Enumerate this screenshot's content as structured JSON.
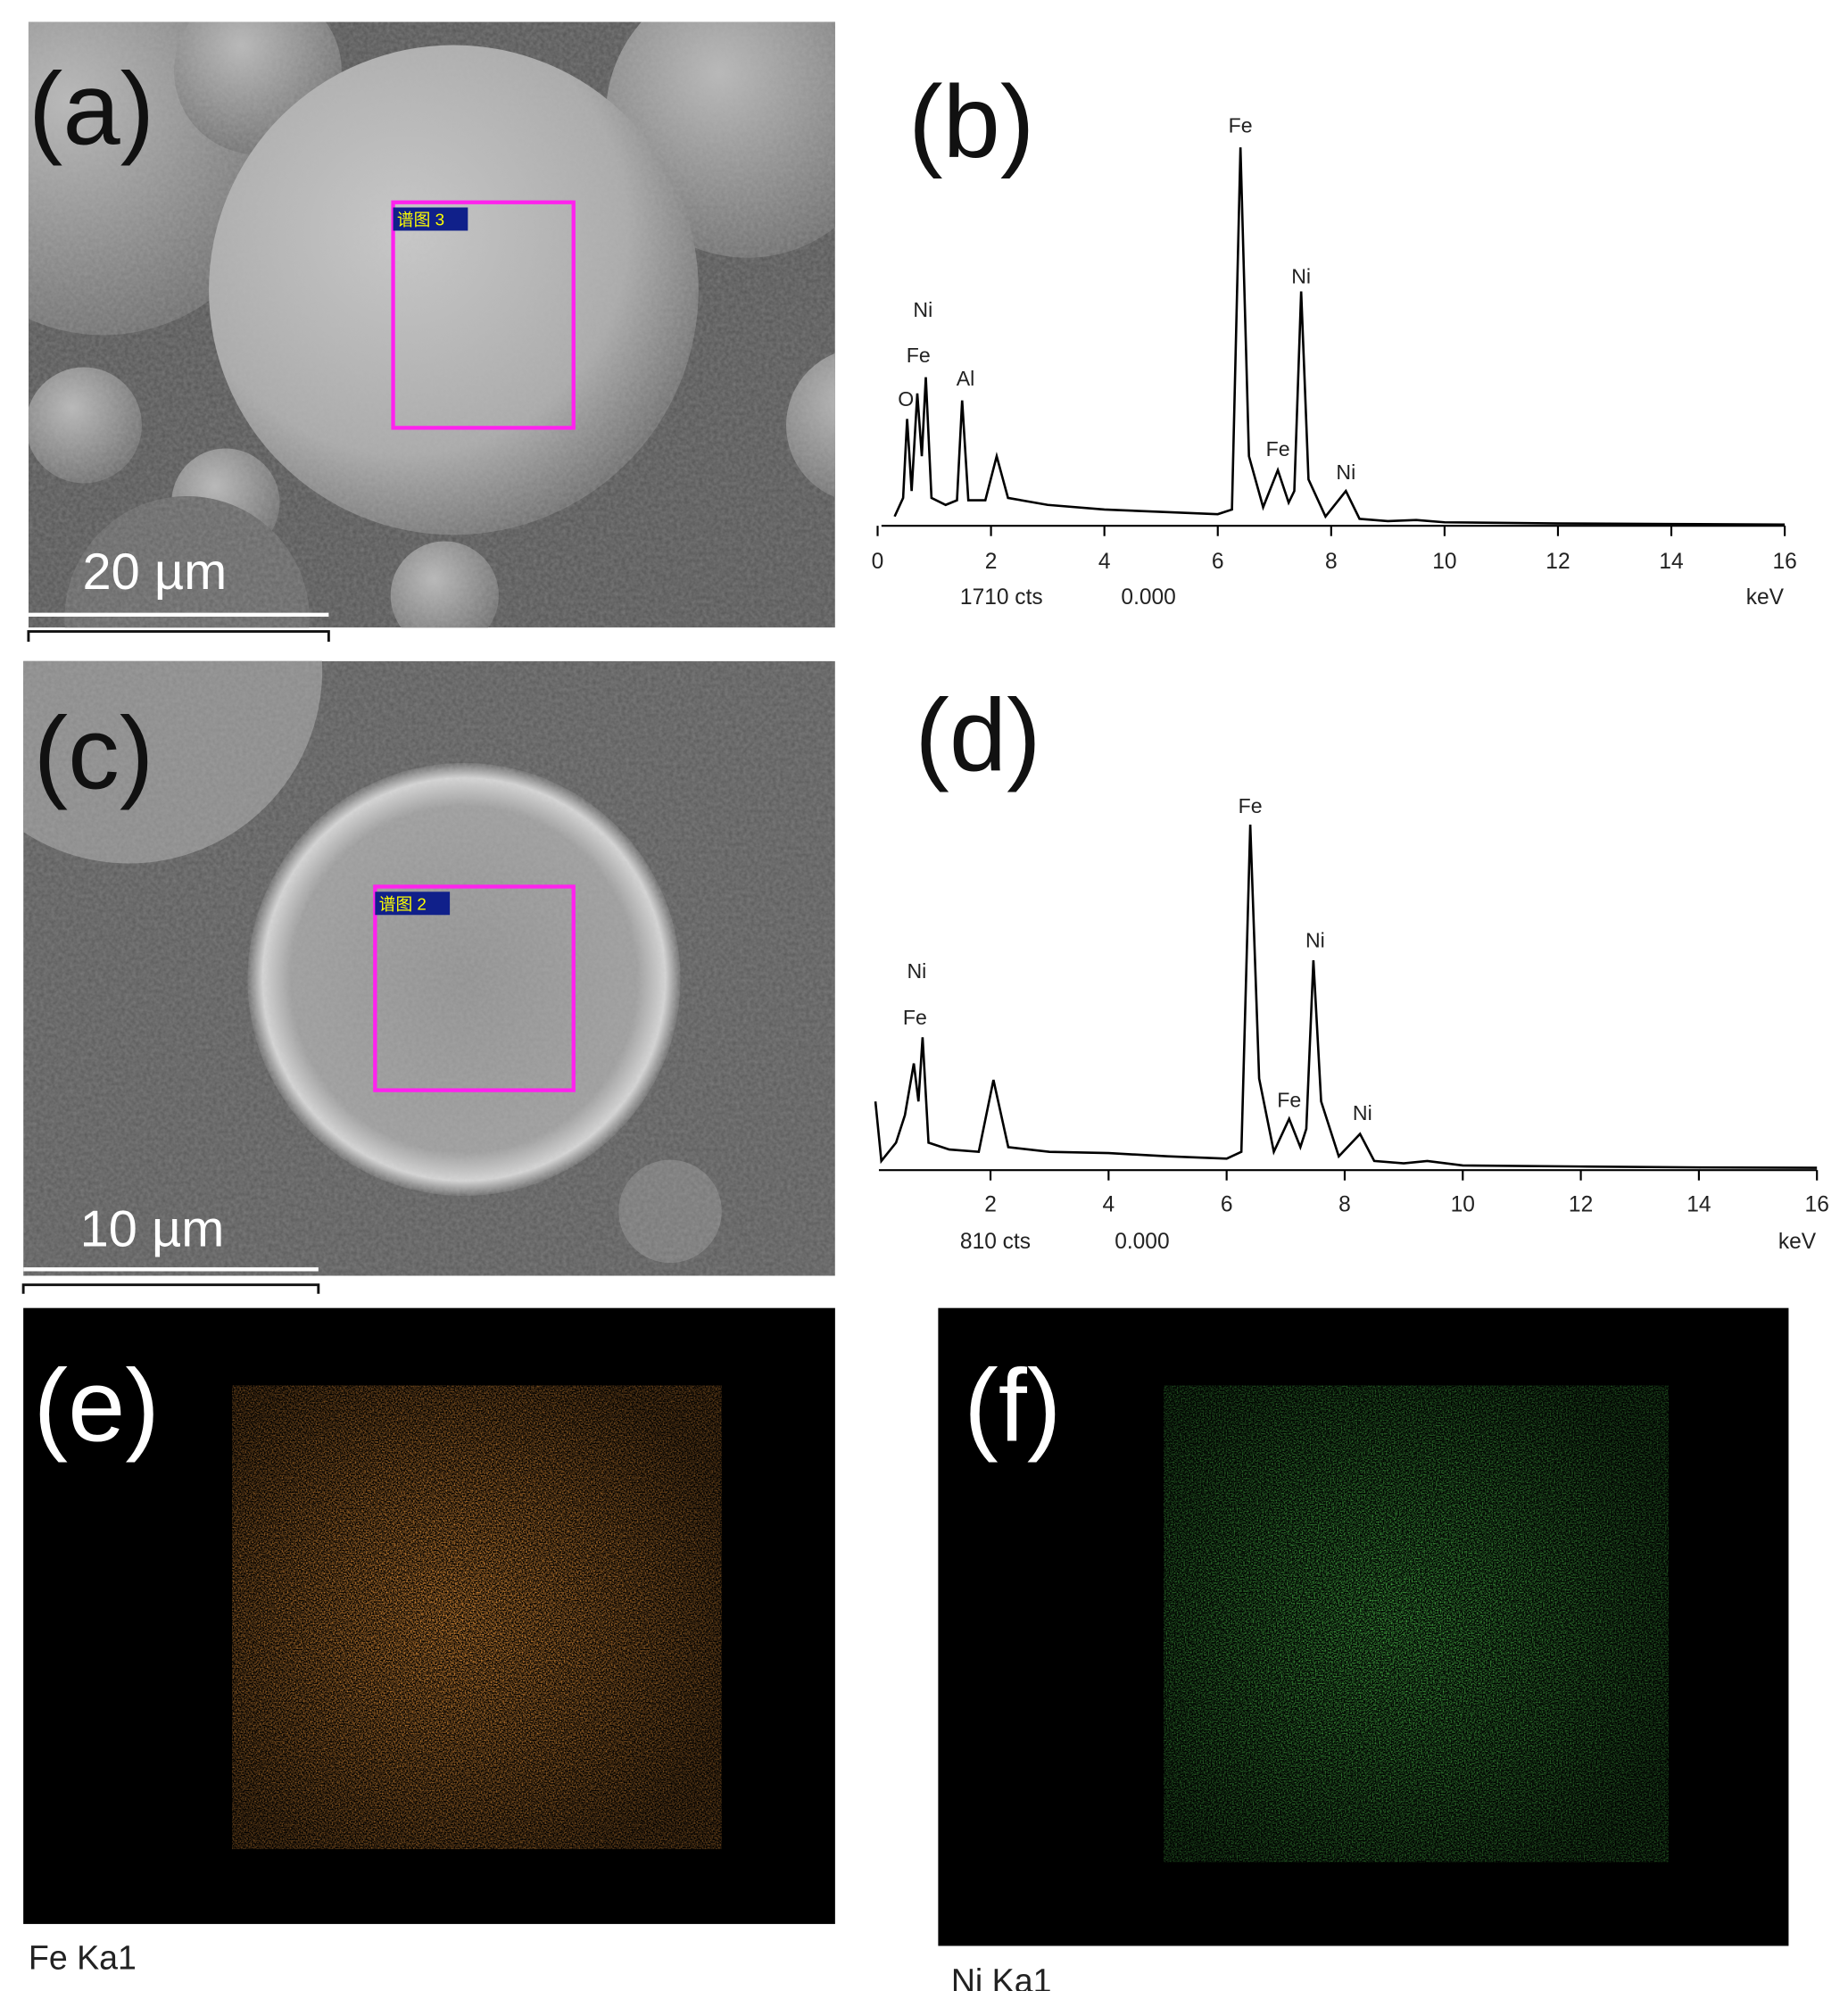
{
  "images": [
    {
      "label": "(a)",
      "scale_bar": "20 µm",
      "region_tag": "谱图 3"
    },
    {
      "label": "(c)",
      "scale_bar": "10 µm",
      "region_tag": "谱图 2"
    },
    {
      "label": "(e)",
      "caption": "Fe Ka1"
    },
    {
      "label": "(f)",
      "caption": "Ni Ka1"
    }
  ],
  "chart_data": [
    {
      "type": "line",
      "title": "(b)",
      "xlabel": "keV",
      "scale_label": "1710 cts",
      "offset_label": "0.000",
      "xlim": [
        0,
        16
      ],
      "xticks": [
        0,
        2,
        4,
        6,
        8,
        10,
        12,
        14,
        16
      ],
      "ylim": [
        0,
        1710
      ],
      "color": "#000000",
      "x": [
        0.3,
        0.45,
        0.52,
        0.6,
        0.7,
        0.78,
        0.85,
        0.95,
        1.2,
        1.4,
        1.49,
        1.6,
        1.9,
        2.1,
        2.3,
        3,
        4,
        5,
        6,
        6.25,
        6.4,
        6.55,
        6.8,
        7.06,
        7.25,
        7.35,
        7.47,
        7.6,
        7.9,
        8.26,
        8.5,
        9,
        9.5,
        10,
        12,
        14,
        16
      ],
      "values": [
        40,
        120,
        460,
        150,
        570,
        300,
        640,
        120,
        90,
        110,
        540,
        110,
        110,
        300,
        120,
        90,
        70,
        60,
        50,
        70,
        1630,
        300,
        80,
        240,
        100,
        150,
        1010,
        200,
        40,
        150,
        30,
        20,
        25,
        15,
        10,
        8,
        5
      ],
      "annotations": [
        "O",
        "Fe",
        "Ni",
        "Al",
        "Fe",
        "Fe",
        "Ni",
        "Ni"
      ]
    },
    {
      "type": "line",
      "title": "(d)",
      "xlabel": "keV",
      "scale_label": "810 cts",
      "offset_label": "0.000",
      "xlim": [
        0,
        16
      ],
      "xticks": [
        2,
        4,
        6,
        8,
        10,
        12,
        14,
        16
      ],
      "ylim": [
        0,
        810
      ],
      "color": "#000000",
      "x": [
        0.05,
        0.15,
        0.4,
        0.55,
        0.7,
        0.78,
        0.85,
        0.95,
        1.3,
        1.8,
        2.05,
        2.3,
        3,
        4,
        5,
        6,
        6.25,
        6.4,
        6.55,
        6.8,
        7.06,
        7.25,
        7.35,
        7.47,
        7.6,
        7.9,
        8.26,
        8.5,
        9,
        9.4,
        10,
        12,
        14,
        16
      ],
      "values": [
        150,
        20,
        60,
        120,
        233,
        150,
        290,
        60,
        45,
        40,
        197,
        50,
        40,
        37,
        30,
        25,
        40,
        754,
        200,
        40,
        112,
        50,
        90,
        458,
        150,
        30,
        79,
        20,
        15,
        20,
        10,
        8,
        6,
        5
      ],
      "annotations": [
        "Fe",
        "Ni",
        "Fe",
        "Fe",
        "Ni",
        "Ni"
      ]
    }
  ]
}
